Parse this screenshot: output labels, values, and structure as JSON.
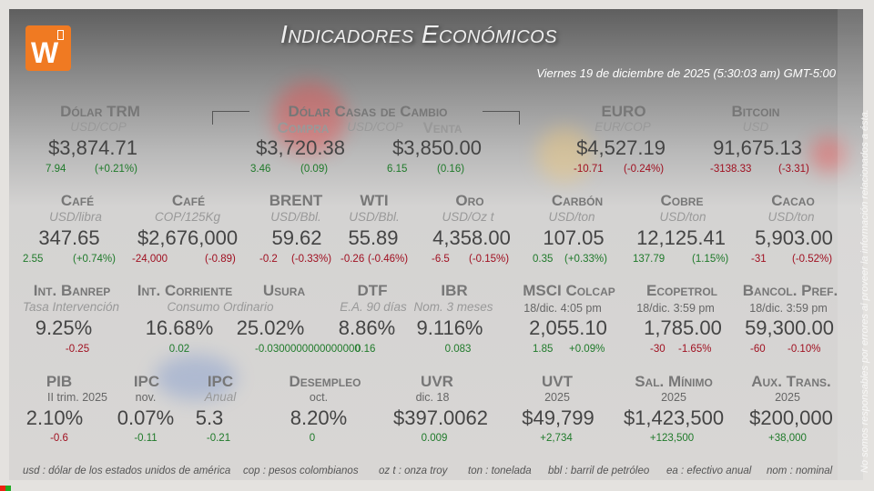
{
  "header": {
    "title": "Indicadores Económicos",
    "date": "Viernes 19 de diciembre de 2025 (5:30:03 am) GMT-5:00",
    "logo_text": "W"
  },
  "disclaimer": "No somos responsables por errores al proveer la información relacionados a ésta.",
  "trm": {
    "title": "Dólar TRM",
    "sub": "USD/COP",
    "value": "$3,874.71",
    "chg": "7.94",
    "pct": "(+0.21%)"
  },
  "casas": {
    "title": "Dólar Casas de Cambio",
    "compra": "Compra",
    "unit": "USD/COP",
    "venta": "Venta",
    "compra_value": "$3,720.38",
    "compra_chg": "3.46",
    "compra_pct": "(0.09)",
    "venta_value": "$3,850.00",
    "venta_chg": "6.15",
    "venta_pct": "(0.16)"
  },
  "euro": {
    "title": "EURO",
    "sub": "EUR/COP",
    "value": "$4,527.19",
    "chg": "-10.71",
    "pct": "(-0.24%)"
  },
  "bitcoin": {
    "title": "Bitcoin",
    "sub": "USD",
    "value": "91,675.13",
    "chg": "-3138.33",
    "pct": "(-3.31)"
  },
  "cafe_usd": {
    "title": "Café",
    "sub": "USD/libra",
    "value": "347.65",
    "chg": "2.55",
    "pct": "(+0.74%)"
  },
  "cafe_cop": {
    "title": "Café",
    "sub": "COP/125Kg",
    "value": "$2,676,000",
    "chg": "-24,000",
    "pct": "(-0.89)"
  },
  "brent": {
    "title": "BRENT",
    "sub": "USD/Bbl.",
    "value": "59.62",
    "chg": "-0.2",
    "pct": "(-0.33%)"
  },
  "wti": {
    "title": "WTI",
    "sub": "USD/Bbl.",
    "value": "55.89",
    "chg": "-0.26",
    "pct": "(-0.46%)"
  },
  "oro": {
    "title": "Oro",
    "sub": "USD/Oz t",
    "value": "4,358.00",
    "chg": "-6.5",
    "pct": "(-0.15%)"
  },
  "carbon": {
    "title": "Carbón",
    "sub": "USD/ton",
    "value": "107.05",
    "chg": "0.35",
    "pct": "(+0.33%)"
  },
  "cobre": {
    "title": "Cobre",
    "sub": "USD/ton",
    "value": "12,125.41",
    "chg": "137.79",
    "pct": "(1.15%)"
  },
  "cacao": {
    "title": "Cacao",
    "sub": "USD/ton",
    "value": "5,903.00",
    "chg": "-31",
    "pct": "(-0.52%)"
  },
  "banrep": {
    "title": "Int. Banrep",
    "sub": "Tasa Intervención",
    "value": "9.25%",
    "chg": "-0.25"
  },
  "corriente": {
    "title": "Int. Corriente",
    "sub": "Consumo Ordinario",
    "value": "16.68%",
    "chg": "0.02"
  },
  "usura": {
    "title": "Usura",
    "value": "25.02%",
    "chg": "-0.0300000000000000"
  },
  "dtf": {
    "title": "DTF",
    "sub": "E.A. 90 días",
    "value": "8.86%",
    "chg": "0.16"
  },
  "ibr": {
    "title": "IBR",
    "sub": "Nom. 3 meses",
    "value": "9.116%",
    "chg": "0.083"
  },
  "colcap": {
    "title": "MSCI Colcap",
    "sub": "18/dic. 4:05 pm",
    "value": "2,055.10",
    "chg": "1.85",
    "pct": "+0.09%"
  },
  "ecopetrol": {
    "title": "Ecopetrol",
    "sub": "18/dic. 3:59 pm",
    "value": "1,785.00",
    "chg": "-30",
    "pct": "-1.65%"
  },
  "bancol": {
    "title": "Bancol. Pref.",
    "sub": "18/dic. 3:59 pm",
    "value": "59,300.00",
    "chg": "-60",
    "pct": "-0.10%"
  },
  "pib": {
    "title": "PIB",
    "sub": "II trim. 2025",
    "value": "2.10%",
    "chg": "-0.6"
  },
  "ipc": {
    "title": "IPC",
    "sub": "nov.",
    "value": "0.07%",
    "chg": "-0.11"
  },
  "ipc_anual": {
    "title": "IPC",
    "sub": "Anual",
    "value": "5.3",
    "chg": "-0.21"
  },
  "desempleo": {
    "title": "Desempleo",
    "sub": "oct.",
    "value": "8.20%",
    "chg": "0"
  },
  "uvr": {
    "title": "UVR",
    "sub": "dic. 18",
    "value": "$397.0062",
    "chg": "0.009"
  },
  "uvt": {
    "title": "UVT",
    "sub": "2025",
    "value": "$49,799",
    "chg": "+2,734"
  },
  "salario": {
    "title": "Sal. Mínimo",
    "sub": "2025",
    "value": "$1,423,500",
    "chg": "+123,500"
  },
  "aux": {
    "title": "Aux. Trans.",
    "sub": "2025",
    "value": "$200,000",
    "chg": "+38,000"
  },
  "legend": [
    "usd : dólar de los estados unidos de américa",
    "cop : pesos colombianos",
    "oz t : onza troy",
    "ton : tonelada",
    "bbl : barril de petróleo",
    "ea : efectivo anual",
    "nom : nominal"
  ],
  "colors": {
    "positive": "#1f7a2a",
    "negative": "#a01020",
    "brand": "#f07a22"
  }
}
